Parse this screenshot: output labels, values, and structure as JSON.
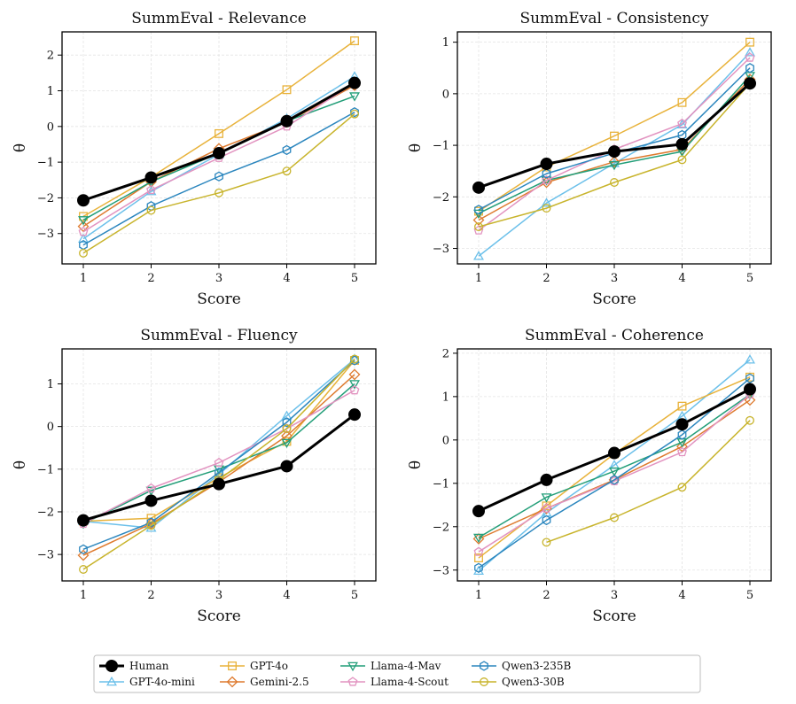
{
  "chart_data": [
    {
      "type": "line",
      "title": "SummEval - Relevance",
      "xlabel": "Score",
      "ylabel": "θ",
      "x": [
        1,
        2,
        3,
        4,
        5
      ],
      "xticks": [
        "1",
        "2",
        "3",
        "4",
        "5"
      ],
      "yticks": [
        -3,
        -2,
        -1,
        0,
        1,
        2
      ],
      "ylim": [
        -3.85,
        2.65
      ],
      "grid": true,
      "series": [
        {
          "name": "Human",
          "values": [
            -2.07,
            -1.43,
            -0.75,
            0.15,
            1.22
          ]
        },
        {
          "name": "GPT-4o-mini",
          "values": [
            -3.15,
            -1.82,
            -0.78,
            0.22,
            1.4
          ]
        },
        {
          "name": "GPT-4o",
          "values": [
            -2.52,
            -1.42,
            -0.2,
            1.03,
            2.4
          ]
        },
        {
          "name": "Gemini-2.5",
          "values": [
            -2.8,
            -1.55,
            -0.62,
            0.12,
            1.15
          ]
        },
        {
          "name": "Llama-4-Mav",
          "values": [
            -2.62,
            -1.55,
            -0.75,
            0.15,
            0.85
          ]
        },
        {
          "name": "Llama-4-Scout",
          "values": [
            -2.95,
            -1.78,
            -0.88,
            0.0,
            1.22
          ]
        },
        {
          "name": "Qwen3-235B",
          "values": [
            -3.32,
            -2.23,
            -1.4,
            -0.66,
            0.4
          ]
        },
        {
          "name": "Qwen3-30B",
          "values": [
            -3.55,
            -2.35,
            -1.86,
            -1.25,
            0.35
          ]
        }
      ]
    },
    {
      "type": "line",
      "title": "SummEval - Consistency",
      "xlabel": "Score",
      "ylabel": "θ",
      "x": [
        1,
        2,
        3,
        4,
        5
      ],
      "xticks": [
        "1",
        "2",
        "3",
        "4",
        "5"
      ],
      "yticks": [
        -3,
        -2,
        -1,
        0,
        1
      ],
      "ylim": [
        -3.3,
        1.2
      ],
      "grid": true,
      "series": [
        {
          "name": "Human",
          "values": [
            -1.82,
            -1.36,
            -1.12,
            -0.98,
            0.2
          ]
        },
        {
          "name": "GPT-4o-mini",
          "values": [
            -3.15,
            -2.12,
            -1.35,
            -0.6,
            0.8
          ]
        },
        {
          "name": "GPT-4o",
          "values": [
            -2.28,
            -1.42,
            -0.82,
            -0.17,
            1.0
          ]
        },
        {
          "name": "Gemini-2.5",
          "values": [
            -2.45,
            -1.72,
            -1.32,
            -1.08,
            0.28
          ]
        },
        {
          "name": "Llama-4-Mav",
          "values": [
            -2.32,
            -1.68,
            -1.38,
            -1.12,
            0.35
          ]
        },
        {
          "name": "Llama-4-Scout",
          "values": [
            -2.65,
            -1.68,
            -1.08,
            -0.58,
            0.7
          ]
        },
        {
          "name": "Qwen3-235B",
          "values": [
            -2.25,
            -1.55,
            -1.15,
            -0.8,
            0.5
          ]
        },
        {
          "name": "Qwen3-30B",
          "values": [
            -2.58,
            -2.22,
            -1.72,
            -1.28,
            0.2
          ]
        }
      ]
    },
    {
      "type": "line",
      "title": "SummEval - Fluency",
      "xlabel": "Score",
      "ylabel": "θ",
      "x": [
        1,
        2,
        3,
        4,
        5
      ],
      "xticks": [
        "1",
        "2",
        "3",
        "4",
        "5"
      ],
      "yticks": [
        -3,
        -2,
        -1,
        0,
        1
      ],
      "ylim": [
        -3.62,
        1.82
      ],
      "grid": true,
      "series": [
        {
          "name": "Human",
          "values": [
            -2.2,
            -1.74,
            -1.35,
            -0.93,
            0.28
          ]
        },
        {
          "name": "GPT-4o-mini",
          "values": [
            -2.22,
            -2.38,
            -1.12,
            0.25,
            1.58
          ]
        },
        {
          "name": "GPT-4o",
          "values": [
            -2.22,
            -2.15,
            -1.2,
            -0.35,
            1.55
          ]
        },
        {
          "name": "Gemini-2.5",
          "values": [
            -3.02,
            -2.28,
            -1.3,
            -0.22,
            1.22
          ]
        },
        {
          "name": "Llama-4-Mav",
          "values": [
            -2.28,
            -1.5,
            -1.0,
            -0.38,
            1.0
          ]
        },
        {
          "name": "Llama-4-Scout",
          "values": [
            -2.28,
            -1.45,
            -0.85,
            -0.05,
            0.85
          ]
        },
        {
          "name": "Qwen3-235B",
          "values": [
            -2.88,
            -2.25,
            -1.08,
            0.1,
            1.55
          ]
        },
        {
          "name": "Qwen3-30B",
          "values": [
            -3.35,
            -2.32,
            -1.25,
            -0.05,
            1.58
          ]
        }
      ]
    },
    {
      "type": "line",
      "title": "SummEval - Coherence",
      "xlabel": "Score",
      "ylabel": "θ",
      "x": [
        1,
        2,
        3,
        4,
        5
      ],
      "xticks": [
        "1",
        "2",
        "3",
        "4",
        "5"
      ],
      "yticks": [
        -3,
        -2,
        -1,
        0,
        1,
        2
      ],
      "ylim": [
        -3.25,
        2.1
      ],
      "grid": true,
      "series": [
        {
          "name": "Human",
          "values": [
            -1.64,
            -0.92,
            -0.3,
            0.36,
            1.17
          ]
        },
        {
          "name": "GPT-4o-mini",
          "values": [
            -3.02,
            -1.68,
            -0.58,
            0.55,
            1.85
          ]
        },
        {
          "name": "GPT-4o",
          "values": [
            -2.72,
            -1.52,
            -0.32,
            0.78,
            1.45
          ]
        },
        {
          "name": "Gemini-2.5",
          "values": [
            -2.28,
            -1.58,
            -0.92,
            -0.15,
            0.92
          ]
        },
        {
          "name": "Llama-4-Mav",
          "values": [
            -2.25,
            -1.32,
            -0.72,
            -0.05,
            1.05
          ]
        },
        {
          "name": "Llama-4-Scout",
          "values": [
            -2.58,
            -1.58,
            -0.95,
            -0.28,
            1.05
          ]
        },
        {
          "name": "Qwen3-235B",
          "values": [
            -2.95,
            -1.85,
            -0.92,
            0.12,
            1.42
          ]
        },
        {
          "name": "Qwen3-30B",
          "values": [
            null,
            -2.36,
            -1.79,
            -1.09,
            0.45
          ]
        }
      ]
    }
  ],
  "legend": {
    "placement": "bottom-center",
    "entries": [
      {
        "name": "Human",
        "color": "#000000",
        "marker": "circle-filled"
      },
      {
        "name": "GPT-4o-mini",
        "color": "#6cc0ea",
        "marker": "triangle-up"
      },
      {
        "name": "GPT-4o",
        "color": "#e8b23a",
        "marker": "square"
      },
      {
        "name": "Gemini-2.5",
        "color": "#de7a2e",
        "marker": "diamond"
      },
      {
        "name": "Llama-4-Mav",
        "color": "#229e78",
        "marker": "triangle-down"
      },
      {
        "name": "Llama-4-Scout",
        "color": "#e293c0",
        "marker": "pentagon"
      },
      {
        "name": "Qwen3-235B",
        "color": "#2b86be",
        "marker": "hexagon"
      },
      {
        "name": "Qwen3-30B",
        "color": "#c8b42c",
        "marker": "circle"
      }
    ]
  }
}
